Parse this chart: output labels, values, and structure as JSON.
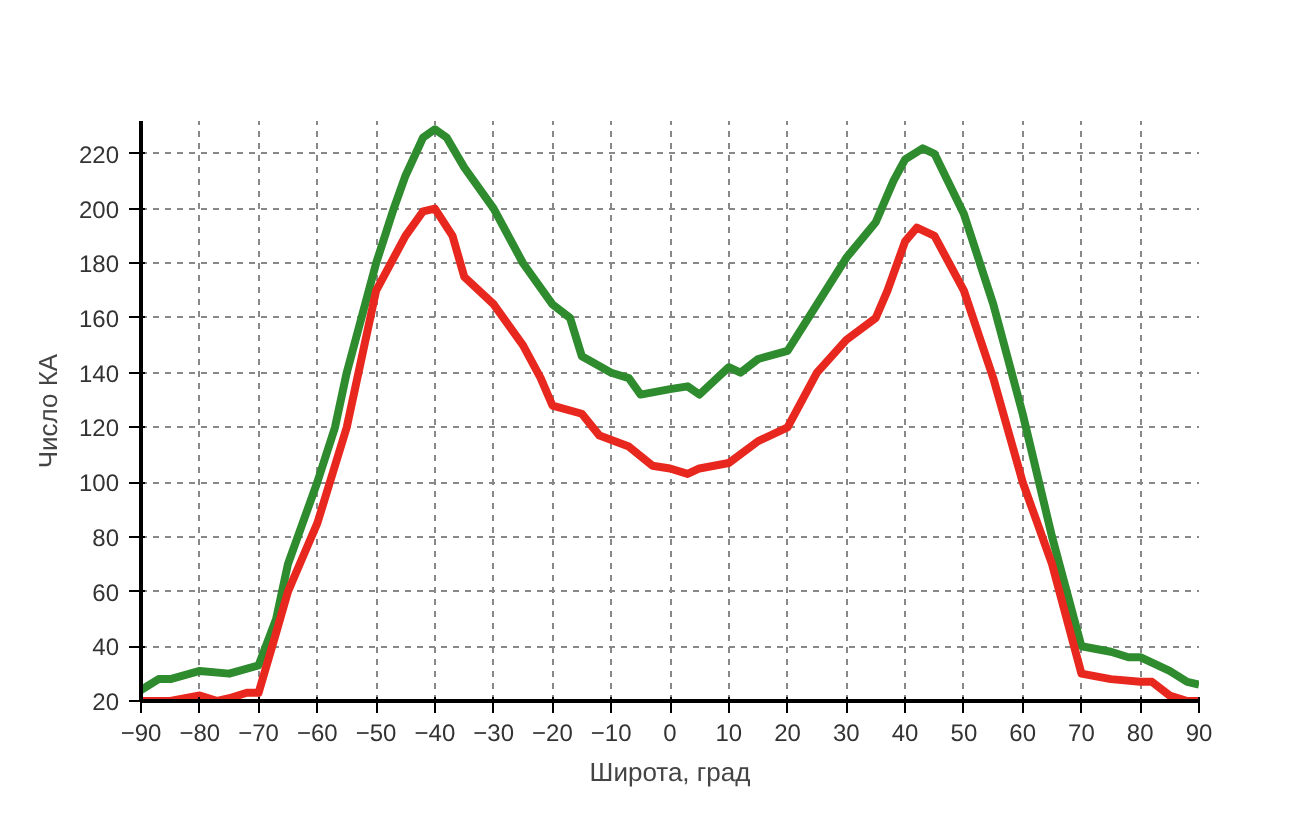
{
  "chart_data": {
    "type": "line",
    "xlabel": "Широта, град",
    "ylabel": "Число КА",
    "xlim": [
      -90,
      90
    ],
    "ylim": [
      20,
      232
    ],
    "xticks": [
      -90,
      -80,
      -70,
      -60,
      -50,
      -40,
      -30,
      -20,
      -10,
      0,
      10,
      20,
      30,
      40,
      50,
      60,
      70,
      80,
      90
    ],
    "yticks": [
      20,
      40,
      60,
      80,
      100,
      120,
      140,
      160,
      180,
      200,
      220
    ],
    "grid": true,
    "line_style": "solid",
    "marker": "none",
    "series": [
      {
        "color": "#2e8b2e",
        "x": [
          -90,
          -87,
          -85,
          -80,
          -75,
          -70,
          -67,
          -65,
          -60,
          -57,
          -55,
          -50,
          -47,
          -45,
          -42,
          -40,
          -38,
          -35,
          -30,
          -25,
          -20,
          -17,
          -15,
          -10,
          -7,
          -5,
          0,
          3,
          5,
          8,
          10,
          12,
          15,
          20,
          25,
          30,
          35,
          38,
          40,
          43,
          45,
          50,
          55,
          60,
          65,
          70,
          75,
          78,
          80,
          85,
          88,
          90
        ],
        "values": [
          24,
          28,
          28,
          31,
          30,
          33,
          50,
          70,
          100,
          120,
          140,
          180,
          200,
          212,
          226,
          229,
          226,
          215,
          200,
          180,
          165,
          160,
          146,
          140,
          138,
          132,
          134,
          135,
          132,
          138,
          142,
          140,
          145,
          148,
          165,
          182,
          195,
          210,
          218,
          222,
          220,
          198,
          165,
          125,
          80,
          40,
          38,
          36,
          36,
          31,
          27,
          26
        ]
      },
      {
        "color": "#e8281e",
        "x": [
          -90,
          -85,
          -80,
          -77,
          -75,
          -72,
          -70,
          -67,
          -65,
          -62,
          -60,
          -55,
          -50,
          -45,
          -42,
          -40,
          -37,
          -35,
          -30,
          -25,
          -22,
          -20,
          -15,
          -12,
          -7,
          -3,
          0,
          3,
          5,
          10,
          15,
          20,
          25,
          30,
          35,
          37,
          40,
          42,
          45,
          50,
          55,
          60,
          65,
          70,
          75,
          80,
          82,
          85,
          88,
          90
        ],
        "values": [
          20,
          20,
          22,
          20,
          21,
          23,
          23,
          45,
          60,
          75,
          85,
          120,
          170,
          190,
          199,
          200,
          190,
          175,
          165,
          150,
          138,
          128,
          125,
          117,
          113,
          106,
          105,
          103,
          105,
          107,
          115,
          120,
          140,
          152,
          160,
          170,
          188,
          193,
          190,
          170,
          138,
          100,
          70,
          30,
          28,
          27,
          27,
          22,
          20,
          20
        ]
      }
    ]
  }
}
